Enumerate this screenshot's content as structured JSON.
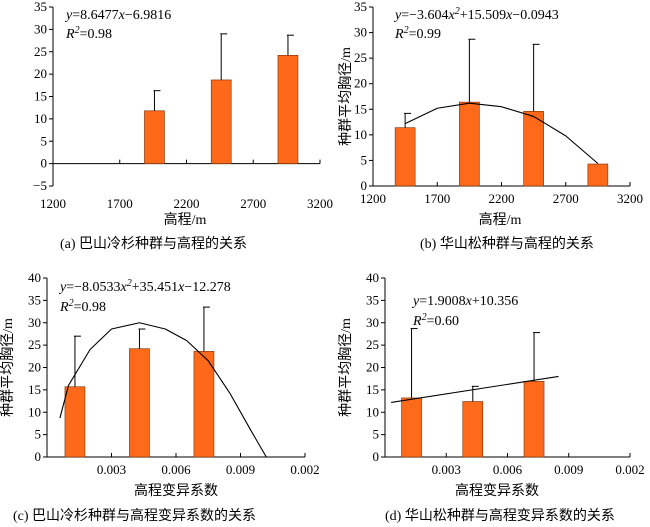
{
  "bar_color": "#FF6A1A",
  "chart_data": [
    {
      "id": "a",
      "type": "bar",
      "caption": "(a) 巴山冷杉种群与高程的关系",
      "xlabel": "高程/m",
      "ylabel": "",
      "xlim": [
        1200,
        3200
      ],
      "ylim": [
        -5,
        35
      ],
      "xticks": [
        "1200",
        "1700",
        "2200",
        "2700",
        "3200"
      ],
      "yticks": [
        "−5",
        "0",
        "5",
        "10",
        "15",
        "20",
        "25",
        "30",
        "35"
      ],
      "bars": [
        {
          "x": 1960,
          "value": 11.8,
          "error": 4.5
        },
        {
          "x": 2460,
          "value": 18.7,
          "error": 10.3
        },
        {
          "x": 2960,
          "value": 24.2,
          "error": 4.5
        }
      ],
      "equation": "y=8.6477x−6.9816",
      "r2": "R2=0.98",
      "fit": {
        "kind": "none"
      }
    },
    {
      "id": "b",
      "type": "bar",
      "caption": "(b) 华山松种群与高程的关系",
      "xlabel": "高程/m",
      "ylabel": "种群平均胸径/m",
      "xlim": [
        1200,
        3200
      ],
      "ylim": [
        0,
        35
      ],
      "xticks": [
        "1200",
        "1700",
        "2200",
        "2700",
        "3200"
      ],
      "yticks": [
        "0",
        "5",
        "10",
        "15",
        "20",
        "25",
        "30",
        "35"
      ],
      "bars": [
        {
          "x": 1450,
          "value": 11.4,
          "error": 2.8
        },
        {
          "x": 1950,
          "value": 16.4,
          "error": 12.3
        },
        {
          "x": 2450,
          "value": 14.6,
          "error": 13.1
        },
        {
          "x": 2950,
          "value": 4.3,
          "error": 0
        }
      ],
      "equation": "y=−3.604x2+15.509x−0.0943",
      "r2": "R2=0.99",
      "fit": {
        "kind": "curve",
        "points": [
          [
            1450,
            12.2
          ],
          [
            1700,
            15.2
          ],
          [
            1950,
            16.2
          ],
          [
            2200,
            15.5
          ],
          [
            2450,
            13.6
          ],
          [
            2700,
            9.8
          ],
          [
            2950,
            4.4
          ]
        ]
      }
    },
    {
      "id": "c",
      "type": "bar",
      "caption": "(c) 巴山冷杉种群与高程变异系数的关系",
      "xlabel": "高程变异系数",
      "ylabel": "种群平均胸径/m",
      "xlim": [
        0,
        0.012
      ],
      "ylim": [
        0,
        40
      ],
      "xticks": [
        "0.003",
        "0.006",
        "0.009",
        "0.002"
      ],
      "yticks": [
        "0",
        "5",
        "10",
        "15",
        "20",
        "25",
        "30",
        "35",
        "40"
      ],
      "bars": [
        {
          "x": 0.0013,
          "value": 15.7,
          "error": 11.3
        },
        {
          "x": 0.0043,
          "value": 24.2,
          "error": 4.4
        },
        {
          "x": 0.0073,
          "value": 23.6,
          "error": 9.9
        }
      ],
      "equation": "y=−8.0533x2+35.451x−12.278",
      "r2": "R2=0.98",
      "fit": {
        "kind": "curve",
        "points": [
          [
            0.0006,
            8.7
          ],
          [
            0.001,
            16.0
          ],
          [
            0.002,
            24.0
          ],
          [
            0.003,
            28.6
          ],
          [
            0.0043,
            30.0
          ],
          [
            0.0055,
            28.6
          ],
          [
            0.0065,
            26.0
          ],
          [
            0.0075,
            21.5
          ],
          [
            0.0085,
            14.3
          ],
          [
            0.0095,
            5.8
          ],
          [
            0.0102,
            0
          ]
        ]
      }
    },
    {
      "id": "d",
      "type": "bar",
      "caption": "(d) 华山松种群与高程变异系数的关系",
      "xlabel": "高程变异系数",
      "ylabel": "种群平均胸径/m",
      "xlim": [
        0,
        0.012
      ],
      "ylim": [
        0,
        40
      ],
      "xticks": [
        "0.003",
        "0.006",
        "0.009",
        "0.002"
      ],
      "yticks": [
        "0",
        "5",
        "10",
        "15",
        "20",
        "25",
        "30",
        "35",
        "40"
      ],
      "bars": [
        {
          "x": 0.0013,
          "value": 13.2,
          "error": 15.5
        },
        {
          "x": 0.0043,
          "value": 12.4,
          "error": 3.4
        },
        {
          "x": 0.0073,
          "value": 16.9,
          "error": 10.9
        }
      ],
      "equation": "y=1.9008x+10.356",
      "r2": "R2=0.60",
      "fit": {
        "kind": "line",
        "points": [
          [
            0.0003,
            12.2
          ],
          [
            0.0085,
            18.0
          ]
        ]
      }
    }
  ]
}
